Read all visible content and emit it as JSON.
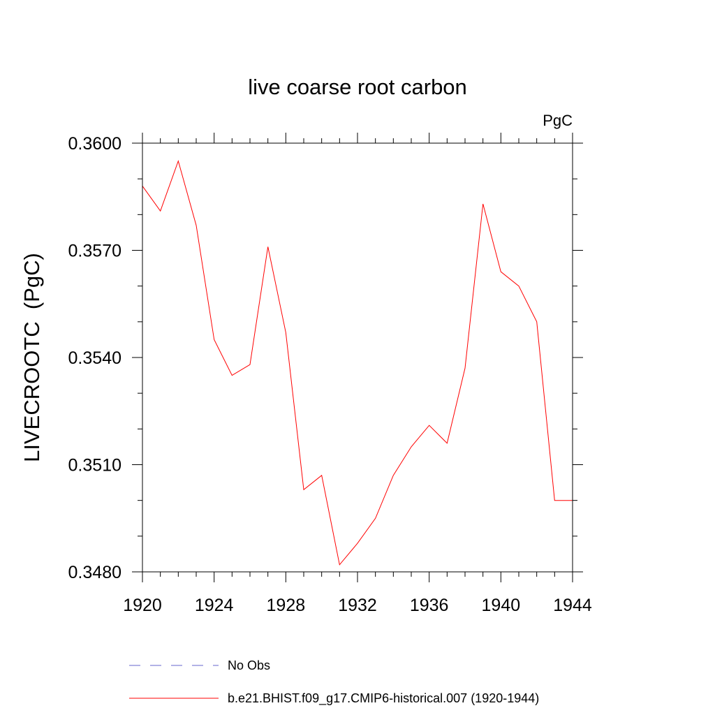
{
  "chart_data": {
    "type": "line",
    "title": "live coarse root carbon",
    "units_label": "PgC",
    "ylabel": "LIVECROOTC  (PgC)",
    "xlabel": "",
    "xlim": [
      1920,
      1944
    ],
    "ylim": [
      0.348,
      0.36
    ],
    "x_ticks": [
      1920,
      1924,
      1928,
      1932,
      1936,
      1940,
      1944
    ],
    "y_ticks": [
      {
        "value": 0.348,
        "label": "0.3480"
      },
      {
        "value": 0.351,
        "label": "0.3510"
      },
      {
        "value": 0.354,
        "label": "0.3540"
      },
      {
        "value": 0.357,
        "label": "0.3570"
      },
      {
        "value": 0.36,
        "label": "0.3600"
      }
    ],
    "x_minor_step": 1,
    "y_minor_step": 0.001,
    "series": [
      {
        "name": "b.e21.BHIST.f09_g17.CMIP6-historical.007 (1920-1944)",
        "color": "#ff0000",
        "dash": "solid",
        "x": [
          1920,
          1921,
          1922,
          1923,
          1924,
          1925,
          1926,
          1927,
          1928,
          1929,
          1930,
          1931,
          1932,
          1933,
          1934,
          1935,
          1936,
          1937,
          1938,
          1939,
          1940,
          1941,
          1942,
          1943,
          1944
        ],
        "values": [
          0.3588,
          0.3581,
          0.3595,
          0.3577,
          0.3545,
          0.3535,
          0.3538,
          0.3571,
          0.3547,
          0.3503,
          0.3507,
          0.3482,
          0.3488,
          0.3495,
          0.3507,
          0.3515,
          0.3521,
          0.3516,
          0.3537,
          0.3583,
          0.3564,
          0.356,
          0.355,
          0.35,
          0.35
        ]
      }
    ],
    "legend": [
      {
        "label": "No Obs",
        "color": "#6666cc",
        "dash": "dashed"
      },
      {
        "label": "b.e21.BHIST.f09_g17.CMIP6-historical.007 (1920-1944)",
        "color": "#ff0000",
        "dash": "solid"
      }
    ],
    "legend_position": "bottom"
  }
}
